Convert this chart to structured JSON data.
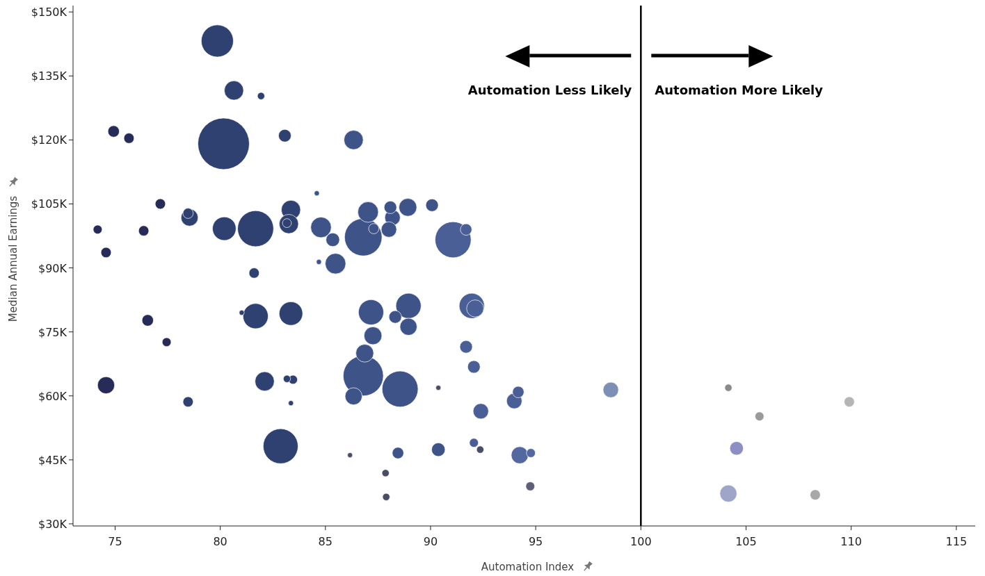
{
  "chart_data": {
    "type": "bubble",
    "xlabel": "Automation Index",
    "ylabel": "Median Annual Earnings",
    "xlim": [
      73.0,
      115.9
    ],
    "ylim": [
      29.5,
      151.5
    ],
    "xticks": [
      75,
      80,
      85,
      90,
      95,
      100,
      105,
      110,
      115
    ],
    "yticks": [
      {
        "value": 30,
        "label": "$30K"
      },
      {
        "value": 45,
        "label": "$45K"
      },
      {
        "value": 60,
        "label": "$60K"
      },
      {
        "value": 75,
        "label": "$75K"
      },
      {
        "value": 90,
        "label": "$90K"
      },
      {
        "value": 105,
        "label": "$105K"
      },
      {
        "value": 120,
        "label": "$120K"
      },
      {
        "value": 135,
        "label": "$135K"
      },
      {
        "value": 150,
        "label": "$150K"
      }
    ],
    "grid": false,
    "ref_lines": [
      {
        "axis": "x",
        "value": 100,
        "color": "#000000"
      }
    ],
    "annotations": [
      "Automation Less Likely",
      "Automation More Likely"
    ],
    "x": [
      79.86,
      80.65,
      81.94,
      74.93,
      75.66,
      80.16,
      83.07,
      86.34,
      84.59,
      77.15,
      78.54,
      78.47,
      76.36,
      74.17,
      74.57,
      80.19,
      81.68,
      83.36,
      83.26,
      83.17,
      84.79,
      85.35,
      84.69,
      85.48,
      81.61,
      87.03,
      88.09,
      88.19,
      88.92,
      90.07,
      88.02,
      87.3,
      86.8,
      91.07,
      91.69,
      81.02,
      81.68,
      83.36,
      76.55,
      77.45,
      74.57,
      78.47,
      82.11,
      83.17,
      83.46,
      83.36,
      82.87,
      86.17,
      87.17,
      88.32,
      88.95,
      88.95,
      87.26,
      86.87,
      86.8,
      86.34,
      88.55,
      91.96,
      92.12,
      91.69,
      92.06,
      90.37,
      92.39,
      94.17,
      93.98,
      92.06,
      92.36,
      90.37,
      88.45,
      94.24,
      94.77,
      87.86,
      87.89,
      94.74,
      98.57,
      104.16,
      109.91,
      105.64,
      104.55,
      104.16,
      108.29
    ],
    "values": [
      143.2,
      131.6,
      130.3,
      122.0,
      120.4,
      119.1,
      121.0,
      120.0,
      107.5,
      105.0,
      101.8,
      102.8,
      98.7,
      99.0,
      93.6,
      99.2,
      99.2,
      103.6,
      100.3,
      100.5,
      99.5,
      96.6,
      91.4,
      91.0,
      88.8,
      103.1,
      104.2,
      101.8,
      104.2,
      104.7,
      99.0,
      99.2,
      97.2,
      96.6,
      99.0,
      79.5,
      78.7,
      79.3,
      77.7,
      72.6,
      62.5,
      58.6,
      63.4,
      64.0,
      63.8,
      58.3,
      48.2,
      46.1,
      79.6,
      78.5,
      81.1,
      76.2,
      74.1,
      70.0,
      64.7,
      59.9,
      61.6,
      81.1,
      80.5,
      71.5,
      66.8,
      61.9,
      56.4,
      60.9,
      58.8,
      49.0,
      47.4,
      47.4,
      46.6,
      46.1,
      46.6,
      41.9,
      36.3,
      38.8,
      61.4,
      61.9,
      58.6,
      55.2,
      47.7,
      37.1,
      36.8
    ],
    "sizes": [
      0.39,
      0.14,
      0.02,
      0.05,
      0.04,
      1,
      0.06,
      0.14,
      0.01,
      0.04,
      0.11,
      0.04,
      0.04,
      0.03,
      0.04,
      0.21,
      0.49,
      0.14,
      0.14,
      0.03,
      0.16,
      0.07,
      0.01,
      0.16,
      0.04,
      0.16,
      0.06,
      0.09,
      0.12,
      0.06,
      0.09,
      0.04,
      0.53,
      0.49,
      0.05,
      0.01,
      0.24,
      0.21,
      0.05,
      0.03,
      0.11,
      0.04,
      0.14,
      0.02,
      0.03,
      0.01,
      0.46,
      0.01,
      0.24,
      0.06,
      0.24,
      0.11,
      0.12,
      0.12,
      0.61,
      0.11,
      0.49,
      0.24,
      0.11,
      0.06,
      0.06,
      0.01,
      0.09,
      0.05,
      0.09,
      0.03,
      0.02,
      0.07,
      0.05,
      0.11,
      0.03,
      0.02,
      0.02,
      0.03,
      0.09,
      0.02,
      0.04,
      0.03,
      0.07,
      0.11,
      0.04
    ],
    "colors": [
      "#2f4170",
      "#2f4170",
      "#2f4170",
      "#262b58",
      "#262b58",
      "#2f4170",
      "#2f4170",
      "#3e5488",
      "#3e5488",
      "#262b58",
      "#2f4170",
      "#2f4170",
      "#262b58",
      "#262b58",
      "#262b58",
      "#2f4170",
      "#2f4170",
      "#2f4170",
      "#2f4170",
      "#2f4170",
      "#3e5488",
      "#3e5488",
      "#3e5488",
      "#3e5488",
      "#2f4170",
      "#3e5488",
      "#3e5488",
      "#3e5488",
      "#3e5488",
      "#3e5488",
      "#3e5488",
      "#3e5488",
      "#3e5488",
      "#4a5f95",
      "#4a5f95",
      "#2f4170",
      "#2f4170",
      "#2f4170",
      "#262b58",
      "#262b58",
      "#262b58",
      "#2f4170",
      "#2f4170",
      "#2f4170",
      "#2f4170",
      "#2f4170",
      "#2f4170",
      "#4a4d66",
      "#3e5488",
      "#3e5488",
      "#3e5488",
      "#3e5488",
      "#3e5488",
      "#3e5488",
      "#3e5488",
      "#3e5488",
      "#3e5488",
      "#4a5f95",
      "#4a5f95",
      "#4a5f95",
      "#4a5f95",
      "#4a4d66",
      "#4a5f95",
      "#4a5f95",
      "#4a5f95",
      "#4a5f95",
      "#4a4d66",
      "#3e5488",
      "#3e5488",
      "#5468a0",
      "#5468a0",
      "#4a4d66",
      "#4a4d66",
      "#5e6078",
      "#7d8fb5",
      "#8a8a8a",
      "#b5b5b5",
      "#9a9a9a",
      "#8d8fc4",
      "#9ea5c9",
      "#a8a8a8"
    ]
  }
}
